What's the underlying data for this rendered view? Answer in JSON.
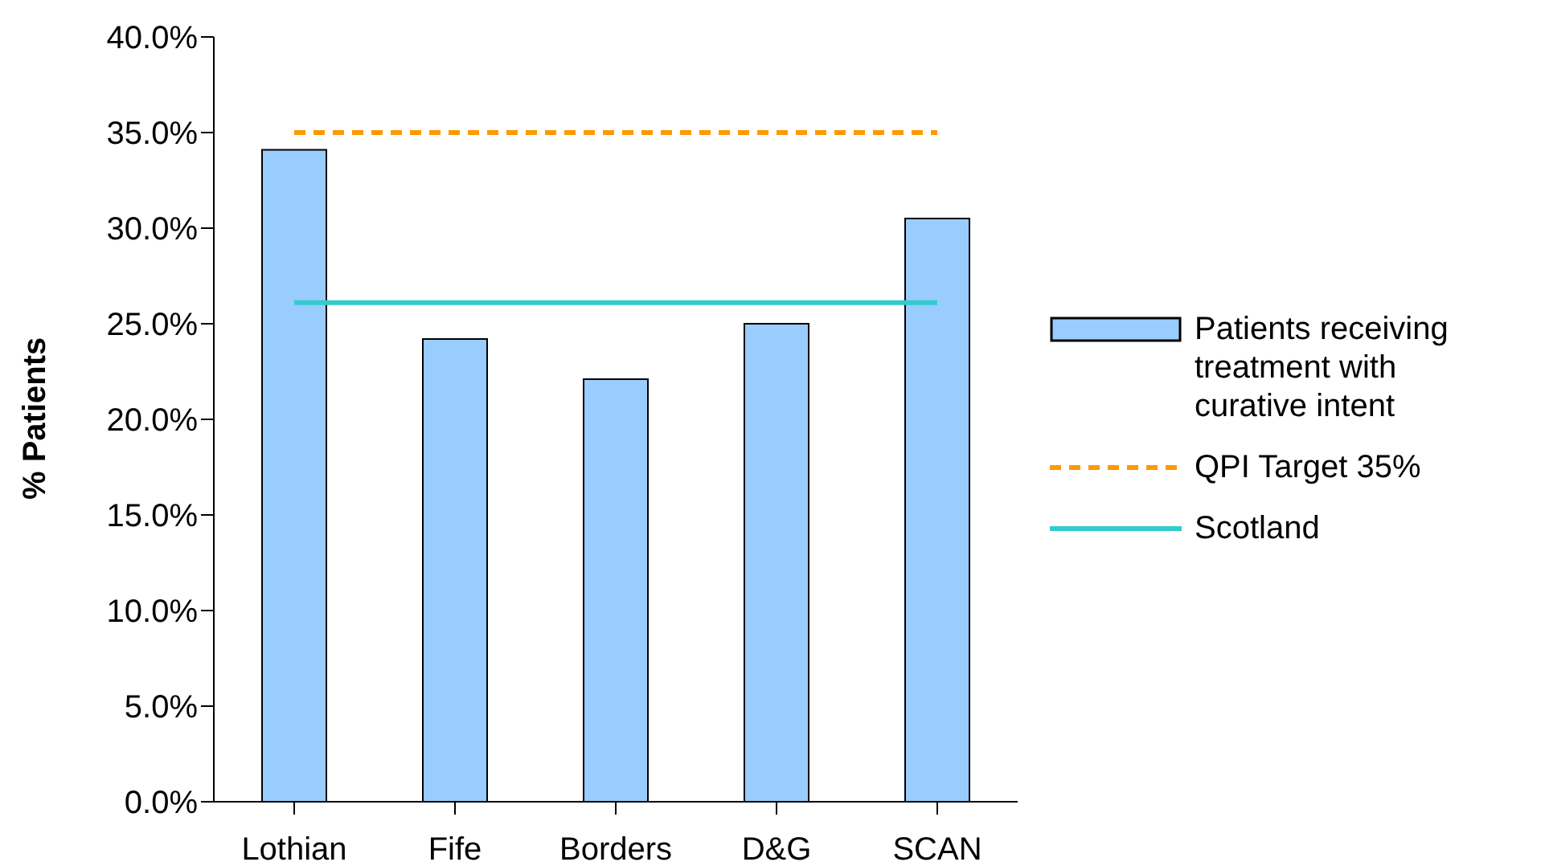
{
  "chart_data": {
    "type": "bar",
    "ylabel": "% Patients",
    "categories": [
      "Lothian",
      "Fife",
      "Borders",
      "D&G",
      "SCAN"
    ],
    "series": [
      {
        "name": "Patients receiving treatment with curative intent",
        "color": "#99ccff",
        "values": [
          34.1,
          24.2,
          22.1,
          25.0,
          30.5
        ]
      },
      {
        "name": "QPI Target 35%",
        "type": "line",
        "color": "#ff9900",
        "line_style": "dashed",
        "values": [
          35,
          35,
          35,
          35,
          35
        ]
      },
      {
        "name": "Scotland",
        "type": "line",
        "color": "#33cccc",
        "line_style": "solid",
        "values": [
          26.1,
          26.1,
          26.1,
          26.1,
          26.1
        ]
      }
    ],
    "ylim": [
      0,
      40
    ],
    "yticks": [
      {
        "value": 0,
        "label": "0.0%"
      },
      {
        "value": 5,
        "label": "5.0%"
      },
      {
        "value": 10,
        "label": "10.0%"
      },
      {
        "value": 15,
        "label": "15.0%"
      },
      {
        "value": 20,
        "label": "20.0%"
      },
      {
        "value": 25,
        "label": "25.0%"
      },
      {
        "value": 30,
        "label": "30.0%"
      },
      {
        "value": 35,
        "label": "35.0%"
      },
      {
        "value": 40,
        "label": "40.0%"
      }
    ],
    "grid": false,
    "legend": "right",
    "marker": "none"
  }
}
